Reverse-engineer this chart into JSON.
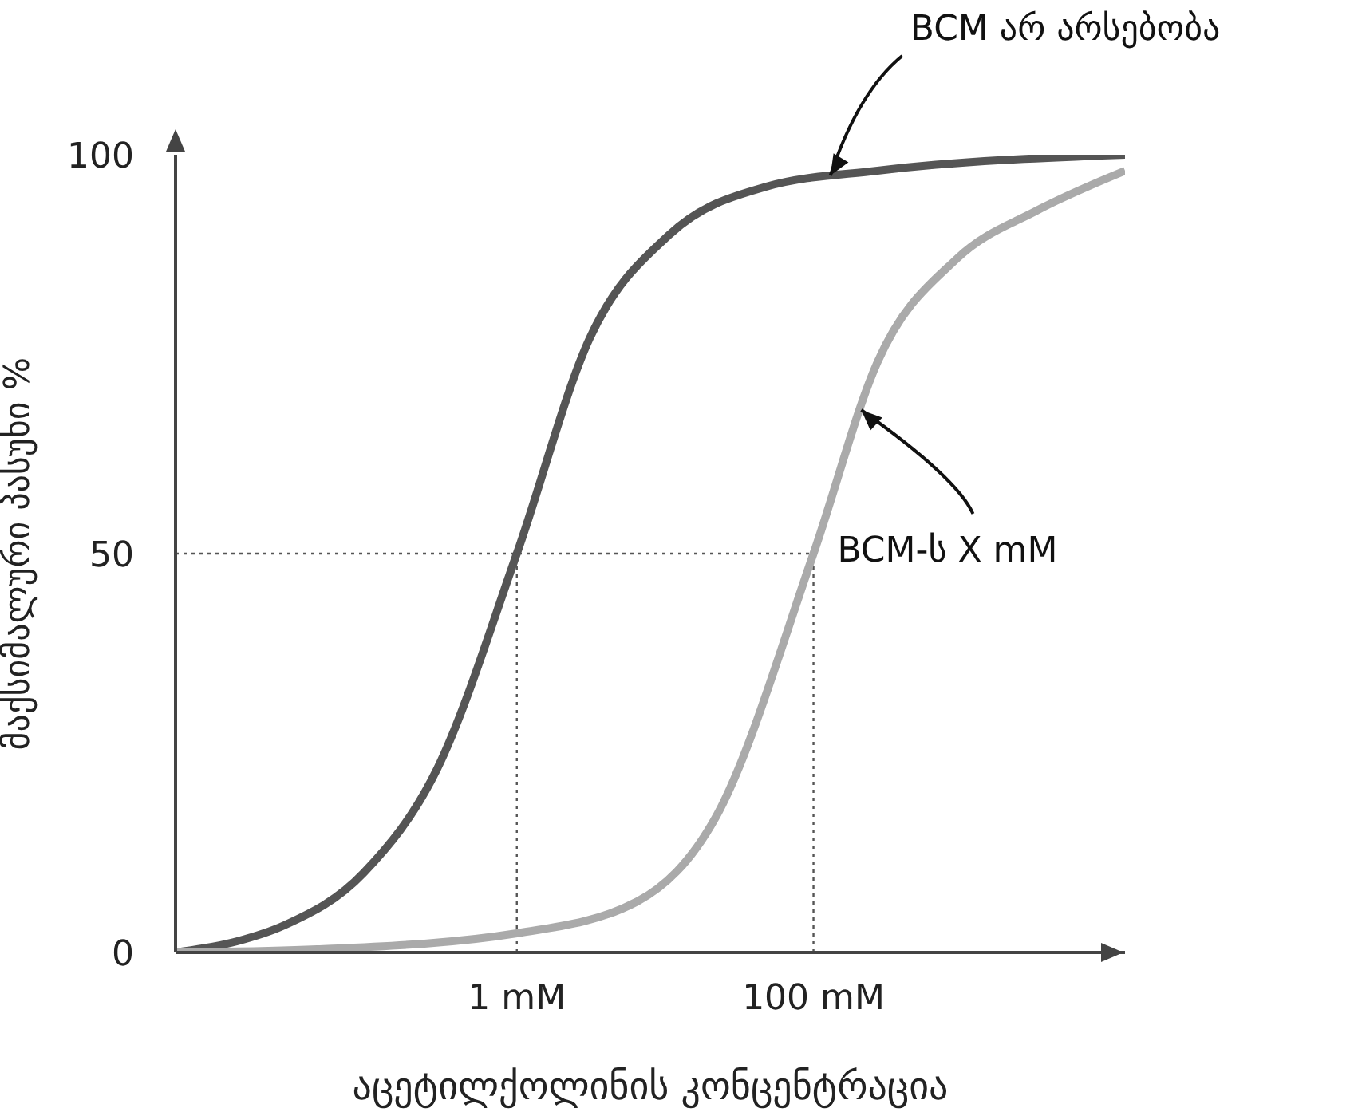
{
  "chart_data": {
    "type": "line",
    "xlabel": "აცეტილქოლინის კონცენტრაცია",
    "ylabel": "მაქსიმალური პასუხი %",
    "log": "x",
    "xlim": [
      0.005,
      12600
    ],
    "xticks": [
      {
        "value": 1,
        "label": "1 mM"
      },
      {
        "value": 100,
        "label": "100 mM"
      }
    ],
    "ylim": [
      0,
      100
    ],
    "yticks": [
      0,
      50,
      100
    ],
    "grid": false,
    "legend": false,
    "marker": "none",
    "line_style": "solid",
    "series": [
      {
        "color": "#555555",
        "x": [
          0.005,
          0.013,
          0.027,
          0.093,
          0.29,
          1,
          3.1,
          10.7,
          48,
          270,
          12600
        ],
        "values": [
          0,
          1.4,
          3.4,
          10,
          23,
          50,
          77,
          90,
          96,
          98,
          100
        ]
      },
      {
        "color": "#aaaaaa",
        "x": [
          0.005,
          0.045,
          1,
          6.5,
          22,
          100,
          270,
          930,
          3200,
          12600
        ],
        "values": [
          0,
          0.4,
          2.4,
          6.4,
          17,
          50,
          74,
          87,
          93,
          98
        ]
      }
    ],
    "ref_lines": [
      {
        "axis": "x",
        "value": 1,
        "color": "#555555",
        "line_style": "dotted"
      },
      {
        "axis": "x",
        "value": 100,
        "color": "#555555",
        "line_style": "dotted"
      },
      {
        "axis": "y",
        "value": 50,
        "color": "#555555",
        "line_style": "dotted"
      }
    ],
    "annotations": [
      {
        "text": "BCM არ არსებობა",
        "x": 130,
        "y": 97.4
      },
      {
        "text": "BCM-ს X mM",
        "x": 210,
        "y": 68
      }
    ]
  }
}
